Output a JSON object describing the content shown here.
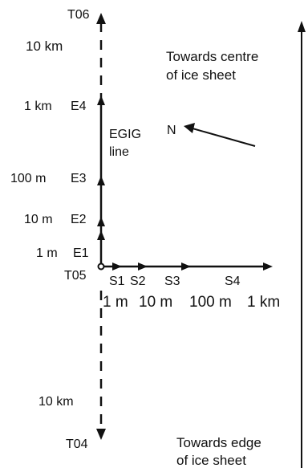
{
  "stations": {
    "t06": "T06",
    "t05": "T05",
    "t04": "T04",
    "e1": "E1",
    "e2": "E2",
    "e3": "E3",
    "e4": "E4",
    "s1": "S1",
    "s2": "S2",
    "s3": "S3",
    "s4": "S4"
  },
  "distances_north": {
    "d_1m": "1 m",
    "d_10m": "10 m",
    "d_100m": "100 m",
    "d_1km": "1 km",
    "d_10km": "10 km"
  },
  "distances_south": {
    "d_10km": "10 km"
  },
  "distances_east": {
    "d_1m": "1 m",
    "d_10m": "10 m",
    "d_100m": "100 m",
    "d_1km": "1 km"
  },
  "egig": {
    "line1": "EGIG",
    "line2": "line"
  },
  "north_label": "N",
  "towards_centre": {
    "line1": "Towards centre",
    "line2": "of ice sheet"
  },
  "towards_edge": {
    "line1": "Towards edge",
    "line2": "of ice sheet"
  },
  "colors": {
    "ink": "#111111",
    "background": "#ffffff"
  }
}
